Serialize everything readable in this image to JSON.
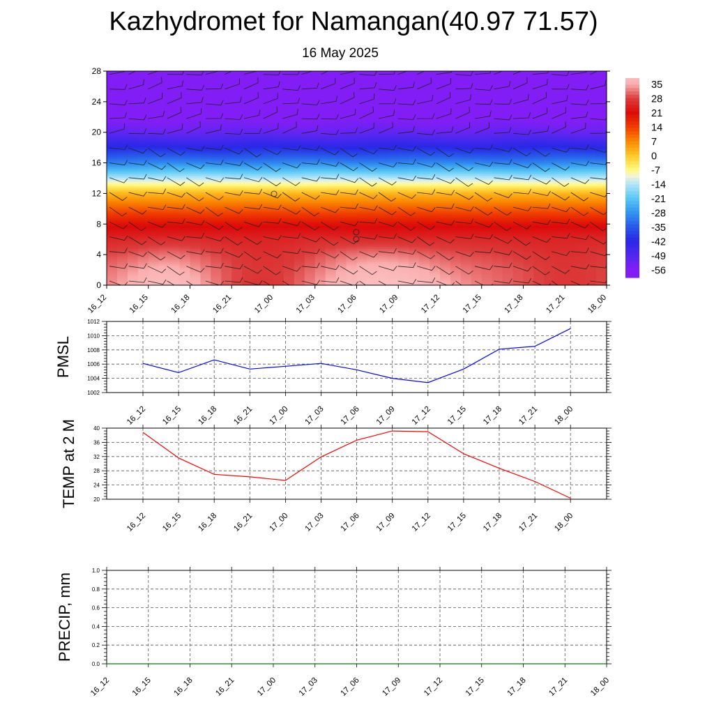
{
  "title": "Kazhydromet for Namangan(40.97 71.57)",
  "subtitle": "16 May 2025",
  "time_labels": [
    "16_12",
    "16_15",
    "16_18",
    "16_21",
    "17_00",
    "17_03",
    "17_06",
    "17_09",
    "17_12",
    "17_15",
    "17_18",
    "17_21",
    "18_00"
  ],
  "colorbar": {
    "labels": [
      "35",
      "28",
      "21",
      "14",
      "7",
      "0",
      "-7",
      "-14",
      "-21",
      "-28",
      "-35",
      "-42",
      "-49",
      "-56"
    ]
  },
  "chart_data": [
    {
      "type": "heatmap",
      "title": "",
      "xlabel": "",
      "ylabel": "",
      "x": [
        "16_12",
        "16_15",
        "16_18",
        "16_21",
        "17_00",
        "17_03",
        "17_06",
        "17_09",
        "17_12",
        "17_15",
        "17_18",
        "17_21",
        "18_00"
      ],
      "yticks": [
        0,
        4,
        8,
        12,
        16,
        20,
        24,
        28
      ],
      "ylim": [
        0,
        28
      ],
      "colorbar_range": [
        -56,
        35
      ],
      "colorbar_ticks": [
        35,
        28,
        21,
        14,
        7,
        0,
        -7,
        -14,
        -21,
        -28,
        -35,
        -42,
        -49,
        -56
      ],
      "overlay": "wind barbs",
      "profile": {
        "heights": [
          0,
          2,
          4,
          6,
          8,
          10,
          12,
          14,
          16,
          18,
          20,
          22,
          24,
          28
        ],
        "temps": [
          31,
          30,
          28,
          25,
          20,
          11,
          2,
          -14,
          -30,
          -42,
          -52,
          -57,
          -58,
          -58
        ]
      }
    },
    {
      "type": "line",
      "title": "",
      "ylabel": "PMSL",
      "x": [
        "16_12",
        "16_15",
        "16_18",
        "16_21",
        "17_00",
        "17_03",
        "17_06",
        "17_09",
        "17_12",
        "17_15",
        "17_18",
        "17_21",
        "18_00"
      ],
      "series": [
        {
          "values": [
            1006.1,
            1004.8,
            1006.6,
            1005.3,
            1005.7,
            1006.1,
            1005.2,
            1004.0,
            1003.4,
            1005.3,
            1008.1,
            1008.5,
            1011.0
          ],
          "color": "#0000ff"
        }
      ],
      "ylim": [
        1002,
        1012
      ],
      "yticks": [
        1002,
        1004,
        1006,
        1008,
        1010,
        1012
      ],
      "grid": true
    },
    {
      "type": "line",
      "title": "",
      "ylabel": "TEMP at 2 M",
      "x": [
        "16_12",
        "16_15",
        "16_18",
        "16_21",
        "17_00",
        "17_03",
        "17_06",
        "17_09",
        "17_12",
        "17_15",
        "17_18",
        "17_21",
        "18_00"
      ],
      "series": [
        {
          "values": [
            38.8,
            31.6,
            27.0,
            26.3,
            25.3,
            31.9,
            36.6,
            39.2,
            39.0,
            32.8,
            28.7,
            25.0,
            20.3
          ],
          "color": "#ff0000"
        }
      ],
      "ylim": [
        20,
        40
      ],
      "yticks": [
        20,
        24,
        28,
        32,
        36,
        40
      ],
      "grid": true
    },
    {
      "type": "line",
      "title": "",
      "ylabel": "PRECIP, mm",
      "x": [
        "16_12",
        "16_15",
        "16_18",
        "16_21",
        "17_00",
        "17_03",
        "17_06",
        "17_09",
        "17_12",
        "17_15",
        "17_18",
        "17_21",
        "18_00"
      ],
      "series": [
        {
          "values": [
            0,
            0,
            0,
            0,
            0,
            0,
            0,
            0,
            0,
            0,
            0,
            0,
            0
          ],
          "color": "#008000"
        }
      ],
      "ylim": [
        0,
        1
      ],
      "yticks": [
        "0.0",
        "0.2",
        "0.4",
        "0.6",
        "0.8",
        "1.0"
      ],
      "grid": true
    }
  ]
}
